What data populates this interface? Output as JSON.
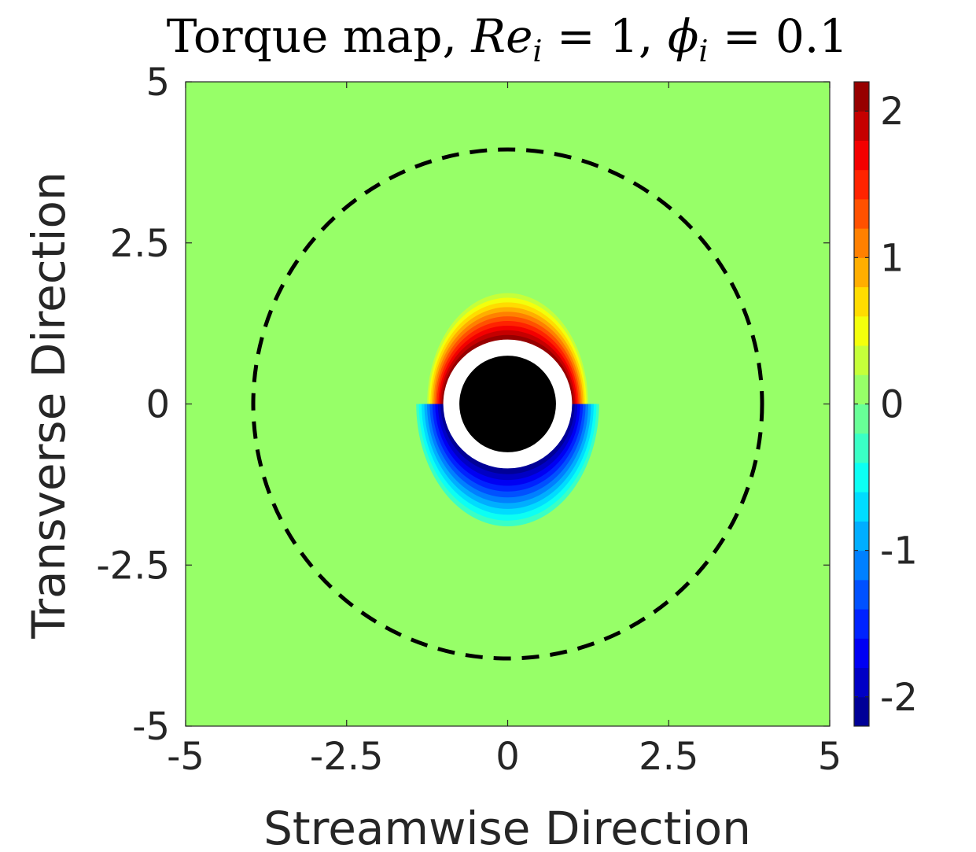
{
  "chart_data": {
    "type": "heatmap",
    "title": {
      "prefix": "Torque map, ",
      "re_symbol": "Re",
      "re_subscript": "i",
      "re_value": " = 1, ",
      "phi_symbol": "ϕ",
      "phi_subscript": "i",
      "phi_value": " = 0.1"
    },
    "xlabel": "Streamwise Direction",
    "ylabel": "Transverse Direction",
    "xlim": [
      -5,
      5
    ],
    "ylim": [
      -5,
      5
    ],
    "xticks": [
      -5,
      -2.5,
      0,
      2.5,
      5
    ],
    "yticks": [
      -5,
      -2.5,
      0,
      2.5,
      5
    ],
    "xtick_labels": [
      "-5",
      "-2.5",
      "0",
      "2.5",
      "5"
    ],
    "ytick_labels": [
      "-5",
      "-2.5",
      "0",
      "2.5",
      "5"
    ],
    "colorbar": {
      "colormap": "jet",
      "clim": [
        -2.2,
        2.2
      ],
      "levels": 22,
      "ticks": [
        -2,
        -1,
        0,
        1,
        2
      ],
      "tick_labels": [
        "-2",
        "-1",
        "0",
        "1",
        "2"
      ]
    },
    "background_value": 0,
    "features": {
      "particle_radius": 0.5,
      "particle_color": "#000000",
      "excluded_annulus_outer_radius": 1.0,
      "dashed_circle_radius": 3.95,
      "dashed_circle_center": [
        0,
        0
      ]
    },
    "lobes": [
      {
        "sign": "positive",
        "x": 0,
        "y": 1.0,
        "peak": 2.2
      },
      {
        "sign": "negative",
        "x": 0,
        "y": -1.0,
        "peak": -2.2
      }
    ]
  }
}
